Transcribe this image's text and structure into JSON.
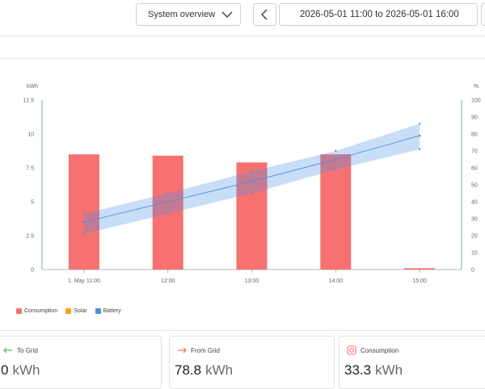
{
  "header": {
    "view_select": {
      "value": "System overview"
    },
    "date_range": "2026-05-01 11:00 to 2026-05-01 16:00"
  },
  "chart_data": {
    "type": "bar",
    "y_left_label": "kWh",
    "y_right_label": "%",
    "y_left_ticks": [
      "0",
      "2.5",
      "5",
      "7.5",
      "10",
      "12.5"
    ],
    "y_right_ticks": [
      "0",
      "10",
      "20",
      "30",
      "40",
      "50",
      "60",
      "70",
      "80",
      "90",
      "100"
    ],
    "ylim_left": [
      0,
      12.5
    ],
    "ylim_right": [
      0,
      100
    ],
    "x_ticks": [
      "1. May 11:00",
      "12:00",
      "13:00",
      "14:00",
      "15:00"
    ],
    "series": [
      {
        "name": "Consumption",
        "type": "bar",
        "axis": "left",
        "color": "#f87171",
        "values": [
          8.5,
          8.4,
          7.9,
          8.5,
          0.1
        ]
      },
      {
        "name": "Solar",
        "type": "bar",
        "axis": "left",
        "color": "#f5a623",
        "values": [
          0,
          0,
          0,
          0,
          0
        ]
      },
      {
        "name": "Battery",
        "type": "line",
        "axis": "right",
        "color": "#4a90e2",
        "values": [
          28,
          40,
          52,
          65,
          79
        ],
        "band_low": [
          21,
          33,
          45,
          59,
          71
        ],
        "band_high": [
          33,
          45,
          58,
          70,
          86
        ]
      }
    ]
  },
  "cards": [
    {
      "title": "To Grid",
      "value": "0",
      "unit": "kWh",
      "icon": "arrow-left-icon",
      "icon_color": "#5cb85c"
    },
    {
      "title": "From Grid",
      "value": "78.8",
      "unit": "kWh",
      "icon": "arrow-right-icon",
      "icon_color": "#f87171"
    },
    {
      "title": "Consumption",
      "value": "33.3",
      "unit": "kWh",
      "icon": "consumption-icon",
      "icon_color": "#f87171"
    }
  ]
}
